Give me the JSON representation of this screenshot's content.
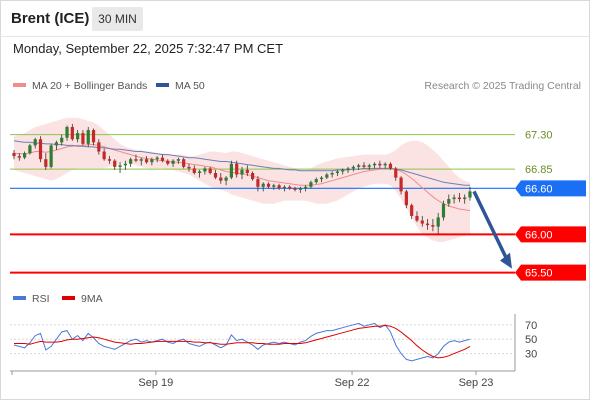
{
  "header": {
    "title": "Brent (ICE)",
    "timeframe": "30 MIN",
    "datetime": "Monday, September 22, 2025 7:32:47 PM CET"
  },
  "legend": {
    "ma20_label": "MA 20 + Bollinger Bands",
    "ma20_color": "#f08c8c",
    "ma50_label": "MA 50",
    "ma50_color": "#2f5597",
    "credit": "Research © 2025 Trading Central"
  },
  "rsi_legend": {
    "rsi_label": "RSI",
    "rsi_color": "#4a78d6",
    "ma_label": "9MA",
    "ma_color": "#e00000"
  },
  "chart_data": [
    {
      "type": "candlestick",
      "x_ticks": [
        "Sep 19",
        "Sep 22",
        "Sep 23"
      ],
      "y_min": 65.3,
      "y_max": 67.7,
      "candles": [
        [
          67.06,
          67.1,
          66.98,
          67.02
        ],
        [
          67.02,
          67.06,
          66.96,
          67.0
        ],
        [
          67.0,
          67.08,
          66.98,
          67.06
        ],
        [
          67.06,
          67.18,
          67.04,
          67.16
        ],
        [
          67.16,
          67.26,
          67.12,
          67.24
        ],
        [
          67.24,
          67.28,
          66.94,
          66.98
        ],
        [
          66.98,
          67.06,
          66.84,
          66.88
        ],
        [
          66.88,
          67.18,
          66.86,
          67.16
        ],
        [
          67.16,
          67.22,
          67.1,
          67.2
        ],
        [
          67.2,
          67.3,
          67.16,
          67.26
        ],
        [
          67.26,
          67.42,
          67.22,
          67.4
        ],
        [
          67.4,
          67.44,
          67.22,
          67.24
        ],
        [
          67.24,
          67.36,
          67.2,
          67.32
        ],
        [
          67.32,
          67.36,
          67.16,
          67.18
        ],
        [
          67.18,
          67.4,
          67.14,
          67.36
        ],
        [
          67.36,
          67.38,
          67.16,
          67.2
        ],
        [
          67.2,
          67.24,
          67.04,
          67.08
        ],
        [
          67.08,
          67.12,
          66.96,
          66.98
        ],
        [
          66.98,
          67.02,
          66.92,
          66.96
        ],
        [
          66.96,
          66.98,
          66.84,
          66.88
        ],
        [
          66.88,
          66.94,
          66.8,
          66.9
        ],
        [
          66.9,
          66.96,
          66.84,
          66.92
        ],
        [
          66.92,
          67.0,
          66.88,
          66.98
        ],
        [
          66.98,
          67.04,
          66.94,
          66.96
        ],
        [
          66.96,
          67.0,
          66.9,
          66.98
        ],
        [
          66.98,
          67.02,
          66.92,
          66.94
        ],
        [
          66.94,
          67.0,
          66.9,
          66.98
        ],
        [
          66.98,
          67.02,
          66.94,
          67.0
        ],
        [
          67.0,
          67.04,
          66.94,
          66.96
        ],
        [
          66.96,
          66.98,
          66.9,
          66.92
        ],
        [
          66.92,
          66.98,
          66.88,
          66.96
        ],
        [
          66.96,
          67.0,
          66.92,
          66.98
        ],
        [
          66.98,
          67.0,
          66.86,
          66.88
        ],
        [
          66.88,
          66.92,
          66.82,
          66.86
        ],
        [
          66.86,
          66.9,
          66.78,
          66.8
        ],
        [
          66.8,
          66.84,
          66.74,
          66.82
        ],
        [
          66.82,
          66.88,
          66.78,
          66.86
        ],
        [
          66.86,
          66.88,
          66.78,
          66.8
        ],
        [
          66.8,
          66.84,
          66.72,
          66.74
        ],
        [
          66.74,
          66.8,
          66.66,
          66.7
        ],
        [
          66.7,
          66.76,
          66.64,
          66.74
        ],
        [
          66.74,
          66.96,
          66.72,
          66.92
        ],
        [
          66.92,
          66.96,
          66.74,
          66.78
        ],
        [
          66.78,
          66.88,
          66.72,
          66.84
        ],
        [
          66.84,
          66.9,
          66.76,
          66.8
        ],
        [
          66.8,
          66.82,
          66.7,
          66.72
        ],
        [
          66.72,
          66.76,
          66.56,
          66.62
        ],
        [
          66.62,
          66.68,
          66.56,
          66.66
        ],
        [
          66.66,
          66.68,
          66.6,
          66.62
        ],
        [
          66.62,
          66.66,
          66.58,
          66.64
        ],
        [
          66.64,
          66.66,
          66.58,
          66.6
        ],
        [
          66.6,
          66.64,
          66.56,
          66.62
        ],
        [
          66.62,
          66.64,
          66.58,
          66.6
        ],
        [
          66.6,
          66.62,
          66.56,
          66.58
        ],
        [
          66.58,
          66.62,
          66.54,
          66.6
        ],
        [
          66.6,
          66.64,
          66.56,
          66.62
        ],
        [
          66.62,
          66.7,
          66.6,
          66.68
        ],
        [
          66.68,
          66.74,
          66.66,
          66.72
        ],
        [
          66.72,
          66.76,
          66.68,
          66.74
        ],
        [
          66.74,
          66.8,
          66.72,
          66.78
        ],
        [
          66.78,
          66.82,
          66.74,
          66.8
        ],
        [
          66.8,
          66.84,
          66.76,
          66.82
        ],
        [
          66.82,
          66.86,
          66.78,
          66.84
        ],
        [
          66.84,
          66.88,
          66.8,
          66.86
        ],
        [
          66.86,
          66.9,
          66.82,
          66.88
        ],
        [
          66.88,
          66.92,
          66.84,
          66.9
        ],
        [
          66.9,
          66.94,
          66.86,
          66.88
        ],
        [
          66.88,
          66.92,
          66.84,
          66.9
        ],
        [
          66.9,
          66.94,
          66.86,
          66.92
        ],
        [
          66.92,
          66.96,
          66.86,
          66.9
        ],
        [
          66.9,
          66.94,
          66.86,
          66.92
        ],
        [
          66.92,
          66.94,
          66.84,
          66.86
        ],
        [
          66.86,
          66.88,
          66.7,
          66.74
        ],
        [
          66.74,
          66.76,
          66.52,
          66.56
        ],
        [
          66.56,
          66.58,
          66.34,
          66.38
        ],
        [
          66.38,
          66.4,
          66.2,
          66.24
        ],
        [
          66.24,
          66.3,
          66.16,
          66.18
        ],
        [
          66.18,
          66.24,
          66.1,
          66.14
        ],
        [
          66.14,
          66.2,
          66.06,
          66.12
        ],
        [
          66.12,
          66.2,
          66.04,
          66.1
        ],
        [
          66.1,
          66.28,
          66.0,
          66.22
        ],
        [
          66.22,
          66.44,
          66.18,
          66.4
        ],
        [
          66.4,
          66.52,
          66.36,
          66.46
        ],
        [
          66.46,
          66.52,
          66.4,
          66.48
        ],
        [
          66.48,
          66.54,
          66.42,
          66.46
        ],
        [
          66.46,
          66.52,
          66.4,
          66.48
        ],
        [
          66.48,
          66.62,
          66.44,
          66.56
        ]
      ],
      "ma20": [
        67.06,
        67.05,
        67.05,
        67.06,
        67.08,
        67.08,
        67.07,
        67.08,
        67.1,
        67.12,
        67.14,
        67.15,
        67.16,
        67.16,
        67.17,
        67.17,
        67.16,
        67.14,
        67.12,
        67.1,
        67.08,
        67.06,
        67.04,
        67.02,
        67.0,
        66.99,
        66.98,
        66.97,
        66.96,
        66.95,
        66.94,
        66.94,
        66.93,
        66.92,
        66.91,
        66.9,
        66.89,
        66.88,
        66.86,
        66.84,
        66.82,
        66.81,
        66.8,
        66.79,
        66.78,
        66.76,
        66.74,
        66.72,
        66.7,
        66.69,
        66.68,
        66.67,
        66.66,
        66.65,
        66.64,
        66.64,
        66.64,
        66.65,
        66.66,
        66.68,
        66.7,
        66.72,
        66.74,
        66.76,
        66.78,
        66.8,
        66.82,
        66.83,
        66.84,
        66.85,
        66.86,
        66.86,
        66.85,
        66.82,
        66.78,
        66.73,
        66.67,
        66.61,
        66.55,
        66.49,
        66.44,
        66.4,
        66.37,
        66.35,
        66.33,
        66.32,
        66.31
      ],
      "ma50": [
        67.22,
        67.21,
        67.2,
        67.2,
        67.19,
        67.19,
        67.18,
        67.18,
        67.17,
        67.17,
        67.16,
        67.16,
        67.15,
        67.15,
        67.14,
        67.14,
        67.13,
        67.13,
        67.12,
        67.11,
        67.11,
        67.1,
        67.09,
        67.08,
        67.08,
        67.07,
        67.06,
        67.05,
        67.04,
        67.04,
        67.03,
        67.02,
        67.01,
        67.0,
        67.0,
        66.99,
        66.98,
        66.97,
        66.96,
        66.95,
        66.95,
        66.94,
        66.93,
        66.92,
        66.91,
        66.9,
        66.89,
        66.88,
        66.87,
        66.86,
        66.86,
        66.85,
        66.84,
        66.84,
        66.83,
        66.83,
        66.83,
        66.83,
        66.83,
        66.83,
        66.83,
        66.84,
        66.84,
        66.84,
        66.85,
        66.85,
        66.86,
        66.86,
        66.86,
        66.86,
        66.86,
        66.86,
        66.85,
        66.84,
        66.82,
        66.8,
        66.78,
        66.76,
        66.74,
        66.72,
        66.7,
        66.68,
        66.67,
        66.66,
        66.65,
        66.64,
        66.64
      ],
      "bb_upper": [
        67.28,
        67.3,
        67.32,
        67.36,
        67.4,
        67.42,
        67.44,
        67.46,
        67.48,
        67.5,
        67.52,
        67.52,
        67.52,
        67.5,
        67.48,
        67.46,
        67.42,
        67.36,
        67.3,
        67.24,
        67.18,
        67.14,
        67.12,
        67.1,
        67.1,
        67.08,
        67.08,
        67.06,
        67.06,
        67.05,
        67.04,
        67.04,
        67.03,
        67.02,
        67.02,
        67.04,
        67.06,
        67.08,
        67.08,
        67.07,
        67.06,
        67.08,
        67.08,
        67.06,
        67.04,
        67.02,
        67.0,
        66.98,
        66.96,
        66.94,
        66.92,
        66.9,
        66.88,
        66.86,
        66.84,
        66.84,
        66.86,
        66.9,
        66.93,
        66.95,
        66.97,
        66.99,
        67.0,
        67.01,
        67.02,
        67.03,
        67.04,
        67.04,
        67.04,
        67.04,
        67.04,
        67.06,
        67.1,
        67.16,
        67.2,
        67.22,
        67.22,
        67.2,
        67.16,
        67.1,
        67.04,
        66.96,
        66.88,
        66.8,
        66.74,
        66.7,
        66.68
      ],
      "bb_lower": [
        66.84,
        66.82,
        66.8,
        66.78,
        66.76,
        66.74,
        66.72,
        66.7,
        66.72,
        66.76,
        66.8,
        66.84,
        66.86,
        66.86,
        66.86,
        66.86,
        66.86,
        66.86,
        66.88,
        66.9,
        66.92,
        66.92,
        66.92,
        66.9,
        66.88,
        66.86,
        66.86,
        66.86,
        66.86,
        66.84,
        66.84,
        66.82,
        66.8,
        66.78,
        66.74,
        66.7,
        66.66,
        66.62,
        66.6,
        66.58,
        66.56,
        66.52,
        66.5,
        66.48,
        66.46,
        66.44,
        66.42,
        66.4,
        66.4,
        66.4,
        66.42,
        66.44,
        66.44,
        66.44,
        66.44,
        66.44,
        66.42,
        66.4,
        66.4,
        66.4,
        66.42,
        66.44,
        66.48,
        66.52,
        66.56,
        66.6,
        66.62,
        66.64,
        66.66,
        66.66,
        66.66,
        66.64,
        66.56,
        66.46,
        66.34,
        66.22,
        66.1,
        66.0,
        65.96,
        65.92,
        65.9,
        65.9,
        65.92,
        65.94,
        65.96,
        65.98,
        66.0
      ],
      "levels": [
        {
          "value": 67.3,
          "label": "67.30",
          "style": "resistance",
          "color": "#8bc34a"
        },
        {
          "value": 66.85,
          "label": "66.85",
          "style": "resistance",
          "color": "#8bc34a"
        },
        {
          "value": 66.6,
          "label": "66.60",
          "style": "current",
          "color": "#1a6ff5"
        },
        {
          "value": 66.0,
          "label": "66.00",
          "style": "support",
          "color": "#ff0000"
        },
        {
          "value": 65.5,
          "label": "65.50",
          "style": "support",
          "color": "#ff0000"
        }
      ],
      "arrow": {
        "from_index": 86,
        "from_value": 66.56,
        "to_value": 65.5,
        "color": "#2f5597"
      }
    },
    {
      "type": "line",
      "name": "RSI",
      "y_ticks": [
        70,
        50,
        30
      ],
      "y_min": 10,
      "y_max": 85,
      "rsi": [
        42,
        40,
        38,
        45,
        55,
        58,
        35,
        40,
        50,
        60,
        62,
        50,
        55,
        48,
        58,
        52,
        44,
        40,
        38,
        36,
        40,
        44,
        48,
        50,
        46,
        48,
        46,
        48,
        50,
        46,
        44,
        48,
        50,
        44,
        42,
        40,
        44,
        46,
        42,
        38,
        42,
        56,
        48,
        50,
        46,
        42,
        36,
        42,
        44,
        46,
        44,
        46,
        44,
        42,
        46,
        48,
        54,
        58,
        60,
        62,
        62,
        64,
        66,
        68,
        70,
        72,
        68,
        70,
        72,
        66,
        70,
        60,
        42,
        30,
        22,
        20,
        22,
        24,
        26,
        24,
        30,
        40,
        46,
        48,
        46,
        48,
        50
      ],
      "ma9": [
        44,
        44,
        44,
        43,
        45,
        47,
        46,
        46,
        46,
        47,
        49,
        50,
        50,
        51,
        52,
        53,
        52,
        50,
        48,
        46,
        45,
        44,
        43,
        44,
        44,
        45,
        46,
        47,
        47,
        47,
        47,
        47,
        47,
        47,
        46,
        46,
        45,
        45,
        44,
        43,
        43,
        44,
        45,
        45,
        45,
        45,
        44,
        44,
        43,
        43,
        43,
        44,
        44,
        44,
        44,
        45,
        47,
        49,
        51,
        53,
        55,
        57,
        59,
        61,
        63,
        65,
        66,
        67,
        68,
        68,
        69,
        68,
        65,
        60,
        54,
        48,
        41,
        35,
        30,
        26,
        24,
        25,
        27,
        30,
        33,
        36,
        40
      ]
    }
  ],
  "rsi_axis_labels": [
    "70",
    "50",
    "30"
  ],
  "x_labels": [
    "Sep 19",
    "Sep 22",
    "Sep 23"
  ]
}
